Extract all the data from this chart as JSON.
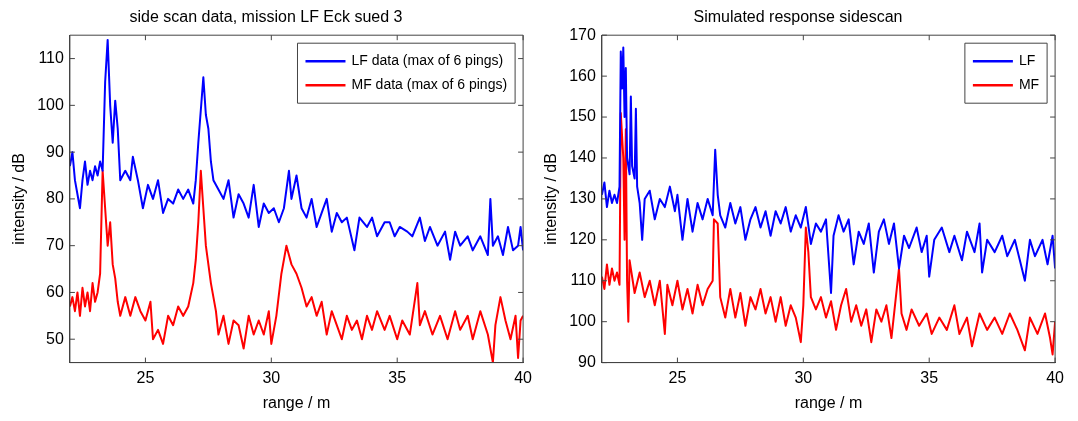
{
  "chart_data": [
    {
      "type": "line",
      "title": "side scan data, mission LF Eck sued 3",
      "xlabel": "range / m",
      "ylabel": "intensity / dB",
      "xlim": [
        22,
        40
      ],
      "ylim": [
        45,
        115
      ],
      "xticks": [
        25,
        30,
        35,
        40
      ],
      "yticks": [
        50,
        60,
        70,
        80,
        90,
        100,
        110
      ],
      "legend": "top right",
      "series": [
        {
          "name": "LF data (max of 6 pings)",
          "color": "#0000ff",
          "x": [
            22.0,
            22.1,
            22.2,
            22.3,
            22.4,
            22.5,
            22.6,
            22.7,
            22.8,
            22.9,
            23.0,
            23.1,
            23.2,
            23.3,
            23.4,
            23.5,
            23.6,
            23.7,
            23.8,
            23.9,
            24.0,
            24.2,
            24.4,
            24.5,
            24.7,
            24.9,
            25.1,
            25.3,
            25.5,
            25.7,
            25.9,
            26.1,
            26.3,
            26.5,
            26.7,
            26.9,
            27.0,
            27.1,
            27.3,
            27.4,
            27.5,
            27.6,
            27.7,
            27.9,
            28.1,
            28.3,
            28.5,
            28.7,
            28.9,
            29.1,
            29.3,
            29.5,
            29.7,
            29.9,
            30.1,
            30.3,
            30.5,
            30.7,
            30.8,
            31.0,
            31.2,
            31.4,
            31.6,
            31.8,
            32.0,
            32.2,
            32.4,
            32.6,
            32.8,
            33.0,
            33.3,
            33.5,
            33.8,
            34.0,
            34.2,
            34.5,
            34.7,
            34.9,
            35.1,
            35.4,
            35.6,
            35.9,
            36.1,
            36.3,
            36.6,
            36.9,
            37.1,
            37.3,
            37.5,
            37.8,
            38.0,
            38.3,
            38.6,
            38.7,
            38.8,
            39.0,
            39.2,
            39.4,
            39.6,
            39.8,
            39.9,
            40.0
          ],
          "values": [
            87,
            90,
            84,
            81,
            78,
            84,
            88,
            83,
            86,
            84,
            87,
            85,
            88,
            86,
            105,
            114,
            100,
            92,
            101,
            95,
            84,
            86,
            84,
            89,
            84,
            78,
            83,
            80,
            84,
            77,
            80,
            79,
            82,
            80,
            82,
            79,
            84,
            92,
            106,
            98,
            95,
            88,
            84,
            82,
            80,
            84,
            76,
            81,
            79,
            76,
            83,
            74,
            79,
            77,
            78,
            75,
            78,
            86,
            80,
            85,
            78,
            76,
            80,
            74,
            77,
            80,
            73,
            77,
            75,
            76,
            69,
            76,
            74,
            76,
            72,
            75,
            75,
            72,
            74,
            73,
            72,
            76,
            71,
            74,
            70,
            73,
            67,
            73,
            70,
            72,
            69,
            72,
            68,
            80,
            70,
            72,
            68,
            74,
            69,
            70,
            74,
            69
          ]
        },
        {
          "name": "MF data (max of 6 pings)",
          "color": "#ff0000",
          "x": [
            22.0,
            22.1,
            22.2,
            22.3,
            22.4,
            22.5,
            22.6,
            22.7,
            22.8,
            22.9,
            23.0,
            23.1,
            23.2,
            23.3,
            23.4,
            23.5,
            23.6,
            23.7,
            23.8,
            23.9,
            24.0,
            24.2,
            24.4,
            24.6,
            24.8,
            25.0,
            25.2,
            25.3,
            25.5,
            25.7,
            25.9,
            26.1,
            26.3,
            26.5,
            26.7,
            26.9,
            27.0,
            27.1,
            27.2,
            27.3,
            27.4,
            27.6,
            27.8,
            27.9,
            28.1,
            28.3,
            28.5,
            28.7,
            28.9,
            29.1,
            29.3,
            29.5,
            29.7,
            29.9,
            30.0,
            30.2,
            30.4,
            30.6,
            30.8,
            31.0,
            31.2,
            31.4,
            31.6,
            31.8,
            32.0,
            32.2,
            32.4,
            32.6,
            32.8,
            33.0,
            33.2,
            33.4,
            33.6,
            33.8,
            34.0,
            34.2,
            34.5,
            34.7,
            35.0,
            35.2,
            35.5,
            35.8,
            35.9,
            36.1,
            36.4,
            36.7,
            37.0,
            37.3,
            37.5,
            37.8,
            38.0,
            38.3,
            38.6,
            38.8,
            38.9,
            39.1,
            39.3,
            39.5,
            39.7,
            39.8,
            39.9,
            40.0
          ],
          "values": [
            57,
            59,
            56,
            60,
            55,
            61,
            57,
            60,
            56,
            62,
            58,
            60,
            64,
            86,
            78,
            70,
            75,
            66,
            63,
            58,
            55,
            59,
            55,
            59,
            56,
            54,
            58,
            50,
            52,
            49,
            55,
            53,
            57,
            55,
            57,
            62,
            67,
            75,
            86,
            78,
            70,
            62,
            56,
            51,
            55,
            49,
            54,
            53,
            48,
            55,
            51,
            54,
            51,
            56,
            49,
            55,
            64,
            70,
            66,
            64,
            61,
            57,
            59,
            55,
            58,
            51,
            56,
            53,
            50,
            55,
            52,
            54,
            50,
            55,
            52,
            56,
            52,
            55,
            50,
            54,
            51,
            62,
            53,
            56,
            51,
            55,
            50,
            56,
            52,
            55,
            50,
            56,
            51,
            45,
            53,
            59,
            54,
            50,
            55,
            46,
            54,
            55
          ]
        }
      ]
    },
    {
      "type": "line",
      "title": "Simulated response sidescan",
      "xlabel": "range / m",
      "ylabel": "intensity / dB",
      "xlim": [
        22,
        40
      ],
      "ylim": [
        90,
        170
      ],
      "xticks": [
        25,
        30,
        35,
        40
      ],
      "yticks": [
        90,
        100,
        110,
        120,
        130,
        140,
        150,
        160,
        170
      ],
      "legend": "top right",
      "series": [
        {
          "name": "LF",
          "color": "#0000ff",
          "x": [
            22.0,
            22.1,
            22.2,
            22.3,
            22.4,
            22.5,
            22.6,
            22.7,
            22.75,
            22.8,
            22.85,
            22.9,
            22.95,
            23.0,
            23.1,
            23.15,
            23.2,
            23.3,
            23.35,
            23.4,
            23.5,
            23.6,
            23.7,
            23.9,
            24.1,
            24.3,
            24.5,
            24.7,
            24.9,
            25.0,
            25.2,
            25.4,
            25.6,
            25.8,
            26.0,
            26.2,
            26.4,
            26.5,
            26.6,
            26.7,
            26.9,
            27.1,
            27.3,
            27.5,
            27.7,
            27.9,
            28.1,
            28.3,
            28.5,
            28.7,
            28.9,
            29.1,
            29.3,
            29.5,
            29.7,
            29.9,
            30.1,
            30.3,
            30.5,
            30.7,
            30.9,
            31.0,
            31.1,
            31.2,
            31.4,
            31.6,
            31.8,
            32.0,
            32.2,
            32.4,
            32.6,
            32.8,
            33.0,
            33.2,
            33.4,
            33.6,
            33.8,
            34.0,
            34.2,
            34.5,
            34.7,
            34.9,
            35.0,
            35.2,
            35.5,
            35.8,
            36.0,
            36.3,
            36.5,
            36.8,
            37.0,
            37.1,
            37.3,
            37.6,
            37.9,
            38.1,
            38.4,
            38.6,
            38.8,
            39.0,
            39.2,
            39.5,
            39.7,
            39.9,
            40.0
          ],
          "values": [
            131,
            134,
            128,
            132,
            129,
            131,
            129,
            133,
            166,
            157,
            167,
            150,
            162,
            140,
            136,
            155,
            138,
            135,
            152,
            133,
            129,
            120,
            130,
            132,
            125,
            130,
            128,
            133,
            127,
            131,
            120,
            130,
            122,
            129,
            125,
            130,
            126,
            142,
            131,
            126,
            123,
            129,
            124,
            128,
            120,
            125,
            128,
            123,
            127,
            121,
            127,
            124,
            128,
            122,
            126,
            123,
            128,
            119,
            124,
            122,
            125,
            116,
            107,
            121,
            126,
            122,
            125,
            114,
            122,
            119,
            124,
            112,
            122,
            125,
            119,
            124,
            113,
            121,
            118,
            123,
            117,
            121,
            111,
            120,
            123,
            117,
            121,
            115,
            122,
            117,
            124,
            112,
            120,
            117,
            121,
            116,
            120,
            115,
            110,
            120,
            116,
            120,
            114,
            121,
            113
          ]
        },
        {
          "name": "MF",
          "color": "#ff0000",
          "x": [
            22.0,
            22.1,
            22.2,
            22.3,
            22.4,
            22.5,
            22.6,
            22.7,
            22.75,
            22.85,
            22.9,
            22.95,
            23.0,
            23.05,
            23.1,
            23.3,
            23.5,
            23.7,
            23.9,
            24.1,
            24.3,
            24.5,
            24.6,
            24.8,
            25.0,
            25.2,
            25.4,
            25.6,
            25.8,
            26.0,
            26.2,
            26.4,
            26.45,
            26.6,
            26.7,
            26.9,
            27.1,
            27.3,
            27.5,
            27.7,
            27.9,
            28.1,
            28.3,
            28.5,
            28.7,
            28.9,
            29.1,
            29.3,
            29.5,
            29.7,
            29.9,
            30.0,
            30.1,
            30.2,
            30.3,
            30.5,
            30.7,
            30.9,
            31.1,
            31.3,
            31.5,
            31.7,
            31.9,
            32.1,
            32.3,
            32.5,
            32.7,
            32.9,
            33.1,
            33.3,
            33.5,
            33.8,
            33.9,
            34.1,
            34.3,
            34.6,
            34.9,
            35.1,
            35.4,
            35.7,
            36.0,
            36.2,
            36.5,
            36.7,
            37.0,
            37.3,
            37.6,
            37.9,
            38.2,
            38.5,
            38.8,
            39.0,
            39.3,
            39.6,
            39.8,
            39.9,
            40.0
          ],
          "values": [
            111,
            108,
            114,
            109,
            113,
            110,
            112,
            109,
            151,
            140,
            120,
            147,
            110,
            100,
            115,
            107,
            112,
            106,
            110,
            104,
            110,
            97,
            109,
            104,
            110,
            103,
            108,
            102,
            109,
            104,
            108,
            110,
            125,
            124,
            106,
            101,
            108,
            101,
            107,
            99,
            106,
            103,
            108,
            102,
            106,
            100,
            106,
            99,
            104,
            101,
            95,
            104,
            123,
            117,
            106,
            103,
            106,
            101,
            105,
            98,
            104,
            108,
            100,
            104,
            99,
            103,
            95,
            103,
            100,
            104,
            96,
            113,
            102,
            98,
            103,
            99,
            102,
            97,
            101,
            98,
            104,
            97,
            101,
            94,
            102,
            98,
            101,
            97,
            102,
            98,
            93,
            101,
            97,
            102,
            96,
            92,
            100
          ]
        }
      ]
    }
  ]
}
